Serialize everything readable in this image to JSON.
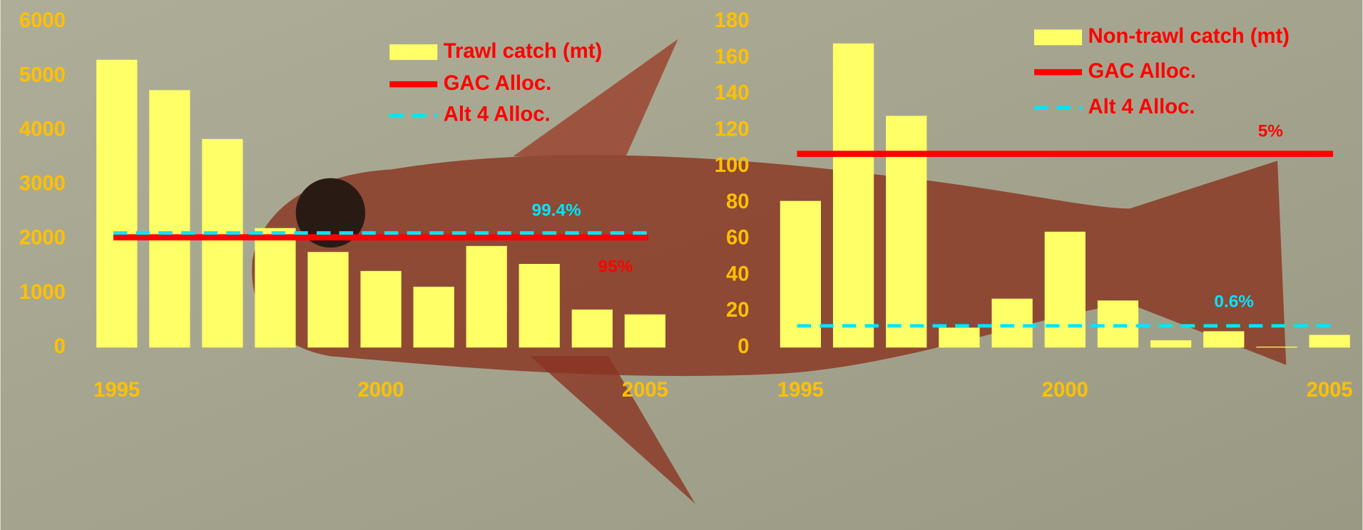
{
  "chart_data": [
    {
      "type": "bar",
      "x": [
        1995,
        1996,
        1997,
        1998,
        1999,
        2000,
        2001,
        2002,
        2003,
        2004,
        2005
      ],
      "xticks": [
        1995,
        2000,
        2005
      ],
      "ylim": [
        0,
        6000
      ],
      "yticks": [
        0,
        1000,
        2000,
        3000,
        4000,
        5000,
        6000
      ],
      "series": [
        {
          "name": "Trawl catch (mt)",
          "color": "#ffff66",
          "values": [
            5300,
            4740,
            3840,
            2200,
            1760,
            1410,
            1120,
            1870,
            1540,
            700,
            610
          ]
        }
      ],
      "reference_lines": [
        {
          "name": "GAC Alloc.",
          "color": "#ff0000",
          "style": "solid",
          "value": 2030,
          "annotation": "95%"
        },
        {
          "name": "Alt 4 Alloc.",
          "color": "#00e5ff",
          "style": "dashed",
          "value": 2110,
          "annotation": "99.4%"
        }
      ]
    },
    {
      "type": "bar",
      "x": [
        1995,
        1996,
        1997,
        1998,
        1999,
        2000,
        2001,
        2002,
        2003,
        2004,
        2005
      ],
      "xticks": [
        1995,
        2000,
        2005
      ],
      "ylim": [
        0,
        180
      ],
      "yticks": [
        0,
        20,
        40,
        60,
        80,
        100,
        120,
        140,
        160,
        180
      ],
      "series": [
        {
          "name": "Non-trawl catch (mt)",
          "color": "#ffff66",
          "values": [
            81,
            168,
            128,
            11,
            27,
            64,
            26,
            4,
            9,
            0.5,
            7
          ]
        }
      ],
      "reference_lines": [
        {
          "name": "GAC Alloc.",
          "color": "#ff0000",
          "style": "solid",
          "value": 107,
          "annotation": "5%"
        },
        {
          "name": "Alt 4 Alloc.",
          "color": "#00e5ff",
          "style": "dashed",
          "value": 12,
          "annotation": "0.6%"
        }
      ]
    }
  ]
}
